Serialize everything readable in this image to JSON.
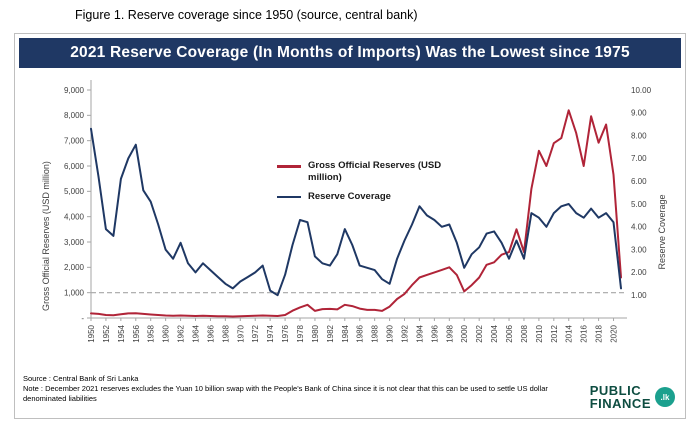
{
  "caption": "Figure 1.  Reserve coverage since 1950 (source, central bank)",
  "panel": {
    "title": "2021 Reserve Coverage (In Months of Imports) Was the Lowest since 1975",
    "source_note": "Source : Central Bank of Sri Lanka",
    "footnote": "Note : December 2021 reserves excludes the Yuan 10 billion swap with the People's Bank of China since it is not clear that this can be used to settle US dollar denominated liabilities",
    "logo": {
      "line1": "PUBLIC",
      "line2": "FINANCE",
      "badge": ".lk"
    }
  },
  "chart_data": {
    "type": "line",
    "title": "2021 Reserve Coverage (In Months of Imports) Was the Lowest since 1975",
    "x": [
      1950,
      1951,
      1952,
      1953,
      1954,
      1955,
      1956,
      1957,
      1958,
      1959,
      1960,
      1961,
      1962,
      1963,
      1964,
      1965,
      1966,
      1967,
      1968,
      1969,
      1970,
      1971,
      1972,
      1973,
      1974,
      1975,
      1976,
      1977,
      1978,
      1979,
      1980,
      1981,
      1982,
      1983,
      1984,
      1985,
      1986,
      1987,
      1988,
      1989,
      1990,
      1991,
      1992,
      1993,
      1994,
      1995,
      1996,
      1997,
      1998,
      1999,
      2000,
      2001,
      2002,
      2003,
      2004,
      2005,
      2006,
      2007,
      2008,
      2009,
      2010,
      2011,
      2012,
      2013,
      2014,
      2015,
      2016,
      2017,
      2018,
      2019,
      2020,
      2021
    ],
    "series": [
      {
        "name": "Gross Official Reserves (USD million)",
        "axis": "left",
        "color": "#b02438",
        "values": [
          180,
          160,
          120,
          110,
          150,
          180,
          190,
          160,
          140,
          120,
          100,
          90,
          100,
          90,
          80,
          90,
          80,
          70,
          70,
          60,
          70,
          80,
          90,
          100,
          90,
          80,
          120,
          290,
          420,
          520,
          280,
          350,
          360,
          340,
          520,
          470,
          370,
          320,
          320,
          280,
          450,
          750,
          950,
          1300,
          1600,
          1700,
          1800,
          1900,
          2000,
          1700,
          1050,
          1300,
          1600,
          2100,
          2200,
          2500,
          2600,
          3500,
          2600,
          5100,
          6600,
          6000,
          6900,
          7100,
          8200,
          7300,
          6000,
          7960,
          6920,
          7640,
          5660,
          1600
        ]
      },
      {
        "name": "Reserve Coverage",
        "axis": "right",
        "color": "#1f3864",
        "values": [
          8.3,
          6.2,
          3.9,
          3.6,
          6.1,
          7.0,
          7.6,
          5.6,
          5.1,
          4.1,
          3.0,
          2.6,
          3.3,
          2.4,
          2.0,
          2.4,
          2.1,
          1.8,
          1.5,
          1.3,
          1.6,
          1.8,
          2.0,
          2.3,
          1.2,
          1.0,
          1.9,
          3.2,
          4.3,
          4.2,
          2.7,
          2.4,
          2.3,
          2.8,
          3.9,
          3.2,
          2.3,
          2.2,
          2.1,
          1.7,
          1.5,
          2.6,
          3.4,
          4.1,
          4.9,
          4.5,
          4.3,
          4.0,
          4.1,
          3.3,
          2.2,
          2.8,
          3.1,
          3.7,
          3.8,
          3.3,
          2.6,
          3.4,
          2.6,
          4.6,
          4.4,
          4.0,
          4.6,
          4.9,
          5.0,
          4.6,
          4.4,
          4.8,
          4.4,
          4.6,
          4.2,
          1.3
        ]
      }
    ],
    "left_axis": {
      "label": "Gross Official Reserves (USD million)",
      "min": 0,
      "max": 9000,
      "tick_step": 1000,
      "tick_labels_top_to_bottom": [
        "9,000",
        "8,000",
        "7,000",
        "6,000",
        "5,000",
        "4,000",
        "3,000",
        "2,000",
        "1,000",
        "-"
      ]
    },
    "right_axis": {
      "label": "Reserve Coverage",
      "min": 0,
      "max": 10,
      "tick_step": 1,
      "tick_labels_top_to_bottom": [
        "10.00",
        "9.00",
        "8.00",
        "7.00",
        "6.00",
        "5.00",
        "4.00",
        "3.00",
        "2.00",
        "1.00"
      ]
    },
    "x_tick_interval_years": 2,
    "x_tick_labels": [
      "1950",
      "1952",
      "1954",
      "1956",
      "1958",
      "1960",
      "1962",
      "1964",
      "1966",
      "1968",
      "1970",
      "1972",
      "1974",
      "1976",
      "1978",
      "1980",
      "1982",
      "1984",
      "1986",
      "1988",
      "1990",
      "1992",
      "1994",
      "1996",
      "1998",
      "2000",
      "2002",
      "2004",
      "2006",
      "2008",
      "2010",
      "2012",
      "2014",
      "2016",
      "2018",
      "2020"
    ],
    "reference_line": {
      "axis": "left",
      "value": 1000,
      "style": "dashed",
      "color": "#a6a6a6"
    },
    "grid": false,
    "legend_position": "top-center"
  }
}
